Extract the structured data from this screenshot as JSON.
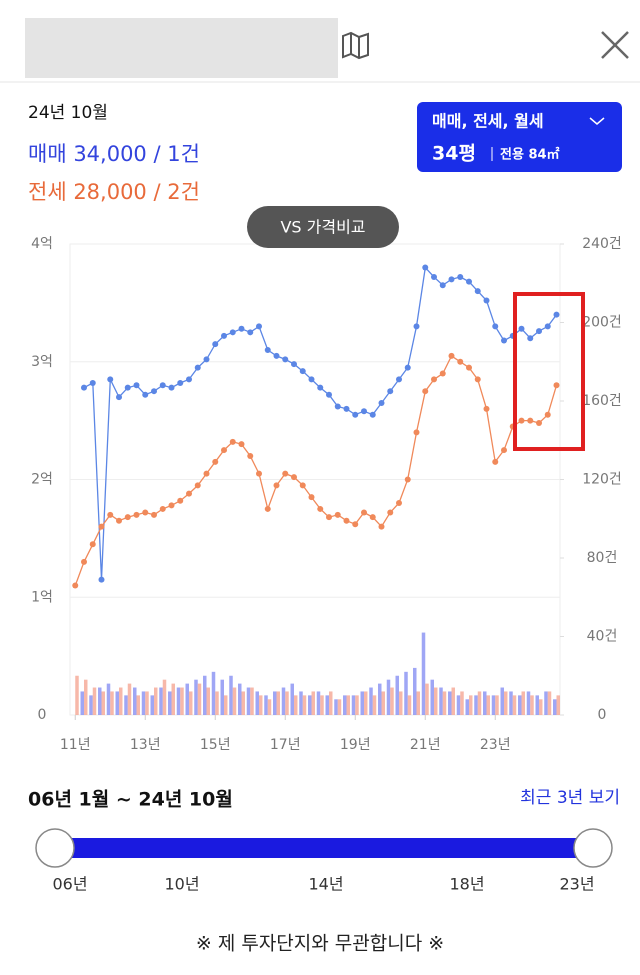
{
  "summary": {
    "date": "24년 10월",
    "sale": "매매 34,000 / 1건",
    "jeonse": "전세 28,000 / 2건"
  },
  "filter": {
    "types": "매매, 전세, 월세",
    "size": "34평",
    "area": "전용 84㎡"
  },
  "compare_button": "VS 가격비교",
  "chart_data": {
    "type": "line",
    "x": [
      11,
      11.25,
      11.5,
      11.75,
      12,
      12.25,
      12.5,
      12.75,
      13,
      13.25,
      13.5,
      13.75,
      14,
      14.25,
      14.5,
      14.75,
      15,
      15.25,
      15.5,
      15.75,
      16,
      16.25,
      16.5,
      16.75,
      17,
      17.25,
      17.5,
      17.75,
      18,
      18.25,
      18.5,
      18.75,
      19,
      19.25,
      19.5,
      19.75,
      20,
      20.25,
      20.5,
      20.75,
      21,
      21.25,
      21.5,
      21.75,
      22,
      22.25,
      22.5,
      22.75,
      23,
      23.25,
      23.5,
      23.75,
      24,
      24.25,
      24.5,
      24.75
    ],
    "xlim": [
      10.85,
      24.85
    ],
    "xticks": [
      {
        "value": 11,
        "label": "11년"
      },
      {
        "value": 13,
        "label": "13년"
      },
      {
        "value": 15,
        "label": "15년"
      },
      {
        "value": 17,
        "label": "17년"
      },
      {
        "value": 19,
        "label": "19년"
      },
      {
        "value": 21,
        "label": "21년"
      },
      {
        "value": 23,
        "label": "23년"
      }
    ],
    "ylim": [
      0,
      4
    ],
    "yticks": [
      0,
      {
        "value": 1,
        "label": "1억"
      },
      {
        "value": 2,
        "label": "2억"
      },
      {
        "value": 3,
        "label": "3억"
      },
      {
        "value": 4,
        "label": "4억"
      }
    ],
    "y2lim": [
      0,
      240
    ],
    "y2ticks": [
      0,
      {
        "value": 40,
        "label": "40건"
      },
      {
        "value": 80,
        "label": "80건"
      },
      {
        "value": 120,
        "label": "120건"
      },
      {
        "value": 160,
        "label": "160건"
      },
      {
        "value": 200,
        "label": "200건"
      },
      {
        "value": 240,
        "label": "240건"
      }
    ],
    "grid": true,
    "series": [
      {
        "kind": "bar",
        "axis": "y2",
        "color": "#7f88f2",
        "values": [
          0,
          12,
          10,
          14,
          16,
          12,
          10,
          14,
          12,
          10,
          14,
          12,
          14,
          16,
          18,
          20,
          22,
          18,
          20,
          16,
          14,
          12,
          10,
          12,
          14,
          16,
          12,
          10,
          12,
          10,
          8,
          10,
          10,
          12,
          14,
          16,
          18,
          20,
          22,
          24,
          42,
          18,
          14,
          12,
          10,
          8,
          10,
          12,
          10,
          14,
          12,
          10,
          12,
          10,
          12,
          8
        ]
      },
      {
        "kind": "bar",
        "axis": "y2",
        "color": "#f4a08c",
        "values": [
          20,
          18,
          14,
          12,
          12,
          14,
          16,
          10,
          12,
          14,
          18,
          16,
          14,
          12,
          16,
          14,
          12,
          10,
          14,
          12,
          14,
          10,
          8,
          12,
          12,
          10,
          10,
          12,
          10,
          12,
          8,
          10,
          10,
          12,
          10,
          12,
          14,
          12,
          10,
          12,
          16,
          14,
          12,
          14,
          12,
          10,
          12,
          10,
          10,
          12,
          10,
          12,
          10,
          8,
          12,
          10
        ]
      },
      {
        "kind": "line",
        "color": "#5b86e5",
        "values": [
          null,
          2.78,
          2.82,
          1.15,
          2.85,
          2.7,
          2.78,
          2.8,
          2.72,
          2.75,
          2.8,
          2.78,
          2.82,
          2.85,
          2.95,
          3.02,
          3.15,
          3.22,
          3.25,
          3.28,
          3.25,
          3.3,
          3.1,
          3.05,
          3.02,
          2.98,
          2.92,
          2.85,
          2.78,
          2.72,
          2.62,
          2.6,
          2.55,
          2.58,
          2.55,
          2.65,
          2.75,
          2.85,
          2.95,
          3.3,
          3.8,
          3.72,
          3.65,
          3.7,
          3.72,
          3.68,
          3.6,
          3.52,
          3.3,
          3.18,
          3.22,
          3.28,
          3.2,
          3.26,
          3.3,
          3.4
        ]
      },
      {
        "kind": "line",
        "color": "#f0895a",
        "values": [
          1.1,
          1.3,
          1.45,
          1.6,
          1.7,
          1.65,
          1.68,
          1.7,
          1.72,
          1.7,
          1.75,
          1.78,
          1.82,
          1.88,
          1.95,
          2.05,
          2.15,
          2.25,
          2.32,
          2.3,
          2.2,
          2.05,
          1.75,
          1.95,
          2.05,
          2.02,
          1.95,
          1.85,
          1.75,
          1.68,
          1.7,
          1.65,
          1.62,
          1.72,
          1.68,
          1.6,
          1.72,
          1.8,
          2.0,
          2.4,
          2.75,
          2.85,
          2.9,
          3.05,
          3.0,
          2.95,
          2.85,
          2.6,
          2.15,
          2.25,
          2.45,
          2.5,
          2.5,
          2.48,
          2.55,
          2.8
        ]
      }
    ]
  },
  "range": {
    "label": "06년 1월 ~ 24년 10월",
    "recent_link": "최근 3년 보기",
    "slider_labels": [
      "06년",
      "10년",
      "14년",
      "18년",
      "23년"
    ]
  },
  "disclaimer": "※ 제 투자단지와 무관합니다 ※"
}
